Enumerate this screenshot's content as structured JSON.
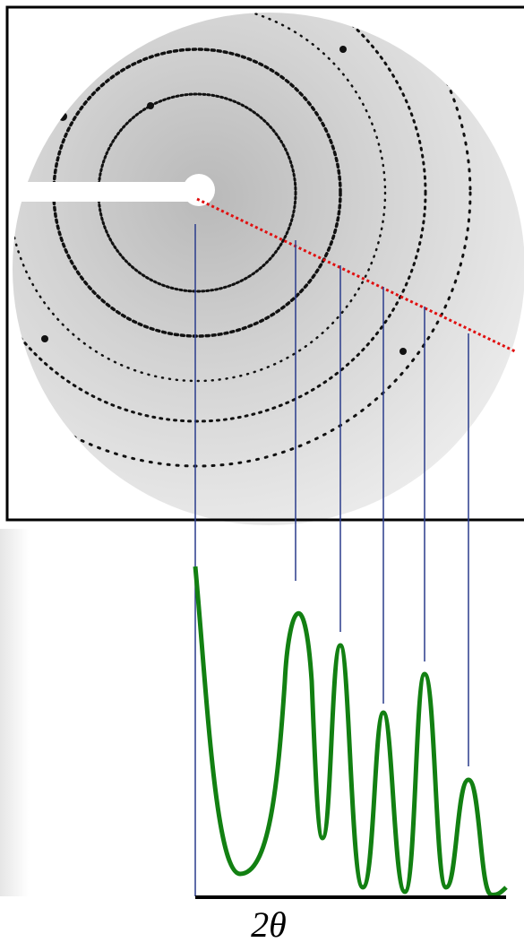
{
  "axis_label": "2θ"
}
